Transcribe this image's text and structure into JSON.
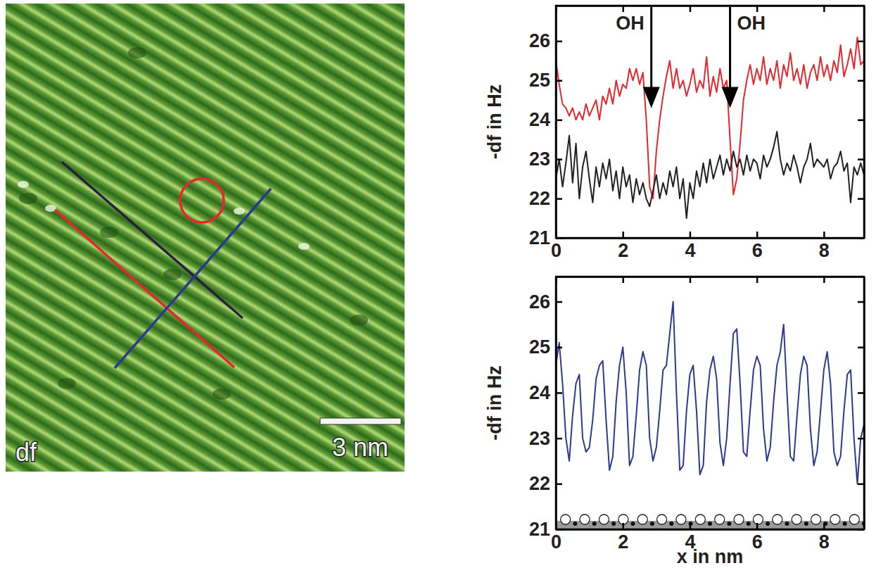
{
  "image": {
    "label": "df",
    "scale_bar": "3 nm"
  },
  "chart_data": [
    {
      "type": "line",
      "ylabel": "-df in Hz",
      "xlim": [
        0,
        9.2
      ],
      "xticks": [
        0,
        2,
        4,
        6,
        8
      ],
      "ylim": [
        21,
        26.9
      ],
      "yticks": [
        21,
        22,
        23,
        24,
        25,
        26
      ],
      "x": [
        0.0,
        0.1,
        0.2,
        0.3,
        0.4,
        0.5,
        0.6,
        0.7,
        0.8,
        0.9,
        1.0,
        1.1,
        1.2,
        1.3,
        1.4,
        1.5,
        1.6,
        1.7,
        1.8,
        1.9,
        2.0,
        2.1,
        2.2,
        2.3,
        2.4,
        2.5,
        2.6,
        2.7,
        2.8,
        2.9,
        3.0,
        3.1,
        3.2,
        3.3,
        3.4,
        3.5,
        3.6,
        3.7,
        3.8,
        3.9,
        4.0,
        4.1,
        4.2,
        4.3,
        4.4,
        4.5,
        4.6,
        4.7,
        4.8,
        4.9,
        5.0,
        5.1,
        5.2,
        5.3,
        5.4,
        5.5,
        5.6,
        5.7,
        5.8,
        5.9,
        6.0,
        6.1,
        6.2,
        6.3,
        6.4,
        6.5,
        6.6,
        6.7,
        6.8,
        6.9,
        7.0,
        7.1,
        7.2,
        7.3,
        7.4,
        7.5,
        7.6,
        7.7,
        7.8,
        7.9,
        8.0,
        8.1,
        8.2,
        8.3,
        8.4,
        8.5,
        8.6,
        8.7,
        8.8,
        8.9,
        9.0,
        9.1,
        9.2
      ],
      "series": [
        {
          "color": "#e8262b",
          "values": [
            25.5,
            24.9,
            24.4,
            24.3,
            24.1,
            24.3,
            24.0,
            24.2,
            24.0,
            24.4,
            24.1,
            24.3,
            24.5,
            24.0,
            24.6,
            24.4,
            24.8,
            24.4,
            25.0,
            24.6,
            24.9,
            24.8,
            25.3,
            25.0,
            25.3,
            24.9,
            25.2,
            24.0,
            22.3,
            22.0,
            23.2,
            24.0,
            24.6,
            25.1,
            25.5,
            24.8,
            25.3,
            24.8,
            25.0,
            24.6,
            24.9,
            25.3,
            24.7,
            25.0,
            24.8,
            25.6,
            24.6,
            25.1,
            24.7,
            25.3,
            24.8,
            25.0,
            23.5,
            22.1,
            22.5,
            23.4,
            24.5,
            25.0,
            25.4,
            24.9,
            25.3,
            25.0,
            25.6,
            24.9,
            25.3,
            25.0,
            25.5,
            24.8,
            25.4,
            25.1,
            25.7,
            25.0,
            25.3,
            24.9,
            25.4,
            24.8,
            25.2,
            25.4,
            25.0,
            25.6,
            25.1,
            25.4,
            25.0,
            25.5,
            25.2,
            25.9,
            25.1,
            25.4,
            25.8,
            25.3,
            26.1,
            25.4,
            25.5
          ]
        },
        {
          "color": "#231f20",
          "values": [
            22.5,
            23.0,
            22.3,
            22.9,
            23.6,
            22.4,
            23.4,
            22.0,
            22.8,
            23.2,
            22.5,
            21.9,
            22.8,
            22.3,
            22.9,
            22.5,
            23.0,
            22.2,
            22.7,
            22.0,
            22.8,
            22.3,
            22.6,
            21.9,
            22.5,
            22.1,
            22.4,
            22.0,
            21.8,
            22.2,
            22.6,
            22.0,
            22.4,
            22.1,
            22.7,
            22.3,
            22.8,
            22.0,
            22.5,
            21.5,
            22.4,
            22.0,
            22.7,
            22.3,
            22.9,
            22.4,
            23.0,
            22.5,
            22.8,
            23.1,
            22.6,
            23.0,
            22.7,
            23.2,
            22.8,
            23.0,
            22.6,
            23.1,
            22.7,
            23.0,
            22.9,
            22.5,
            23.1,
            22.8,
            23.0,
            23.3,
            23.7,
            23.0,
            22.6,
            22.9,
            22.7,
            23.1,
            22.8,
            22.4,
            22.8,
            23.0,
            23.4,
            22.8,
            23.0,
            22.9,
            22.8,
            23.0,
            22.5,
            22.8,
            22.9,
            23.2,
            22.7,
            22.9,
            21.9,
            22.8,
            22.6,
            22.9,
            22.6
          ]
        }
      ],
      "annotations": [
        {
          "text": "OH",
          "x": 2.85,
          "y": 24.3
        },
        {
          "text": "OH",
          "x": 5.2,
          "y": 24.3
        }
      ]
    },
    {
      "type": "line",
      "xlabel": "x in nm",
      "ylabel": "-df in Hz",
      "xlim": [
        0,
        9.2
      ],
      "xticks": [
        0,
        2,
        4,
        6,
        8
      ],
      "ylim": [
        21,
        26.55
      ],
      "yticks": [
        21,
        22,
        23,
        24,
        25,
        26
      ],
      "x": [
        0.0,
        0.1,
        0.2,
        0.3,
        0.4,
        0.5,
        0.6,
        0.7,
        0.8,
        0.9,
        1.0,
        1.1,
        1.2,
        1.3,
        1.4,
        1.5,
        1.6,
        1.7,
        1.8,
        1.9,
        2.0,
        2.1,
        2.2,
        2.3,
        2.4,
        2.5,
        2.6,
        2.7,
        2.8,
        2.9,
        3.0,
        3.1,
        3.2,
        3.3,
        3.4,
        3.5,
        3.6,
        3.7,
        3.8,
        3.9,
        4.0,
        4.1,
        4.2,
        4.3,
        4.4,
        4.5,
        4.6,
        4.7,
        4.8,
        4.9,
        5.0,
        5.1,
        5.2,
        5.3,
        5.4,
        5.5,
        5.6,
        5.7,
        5.8,
        5.9,
        6.0,
        6.1,
        6.2,
        6.3,
        6.4,
        6.5,
        6.6,
        6.7,
        6.8,
        6.9,
        7.0,
        7.1,
        7.2,
        7.3,
        7.4,
        7.5,
        7.6,
        7.7,
        7.8,
        7.9,
        8.0,
        8.1,
        8.2,
        8.3,
        8.4,
        8.5,
        8.6,
        8.7,
        8.8,
        8.9,
        9.0,
        9.1,
        9.2
      ],
      "series": [
        {
          "color": "#2b3990",
          "values": [
            24.6,
            25.1,
            24.2,
            23.0,
            22.5,
            23.5,
            24.2,
            24.4,
            23.0,
            22.7,
            22.8,
            23.4,
            24.3,
            24.6,
            24.7,
            23.4,
            22.3,
            22.6,
            23.8,
            24.6,
            25.0,
            24.0,
            22.4,
            22.6,
            23.5,
            24.5,
            24.9,
            24.6,
            23.0,
            22.5,
            22.8,
            23.6,
            24.5,
            24.6,
            25.3,
            26.0,
            24.0,
            22.3,
            22.4,
            23.6,
            24.4,
            24.6,
            23.6,
            22.2,
            22.4,
            23.8,
            24.5,
            24.8,
            24.3,
            22.9,
            22.4,
            23.0,
            24.2,
            25.3,
            25.4,
            24.2,
            22.7,
            22.6,
            23.6,
            24.5,
            24.8,
            24.6,
            23.2,
            22.5,
            22.8,
            23.8,
            24.6,
            24.9,
            25.5,
            24.0,
            22.6,
            22.5,
            23.5,
            24.4,
            24.8,
            24.6,
            23.2,
            22.4,
            22.7,
            23.6,
            24.5,
            24.9,
            24.2,
            22.7,
            22.4,
            22.6,
            23.6,
            24.4,
            24.5,
            23.0,
            22.0,
            23.0,
            23.3
          ]
        }
      ]
    }
  ]
}
